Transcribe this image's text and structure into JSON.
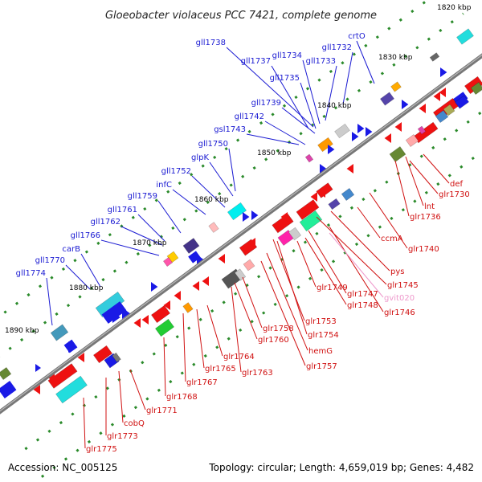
{
  "title": "Gloeobacter violaceus PCC 7421, complete genome",
  "footer": {
    "accession": "Accession: NC_005125",
    "summary": "Topology: circular; Length: 4,659,019 bp; Genes: 4,482"
  },
  "colors": {
    "forward_label": "#1a1ad2",
    "reverse_label": "#d01010",
    "rna_label": "#ee99cc",
    "backbone": "#7a7a7a",
    "tick": "#2a8a2a"
  },
  "kbp_labels": [
    "1820 kbp",
    "1830 kbp",
    "1840 kbp",
    "1850 kbp",
    "1860 kbp",
    "1870 kbp",
    "1880 kbp",
    "1890 kbp"
  ],
  "forward_labels": [
    "gll1738",
    "gll1737",
    "gll1734",
    "gll1733",
    "gll1732",
    "crtO",
    "gll1735",
    "gll1739",
    "gll1742",
    "gsl1743",
    "gll1750",
    "glpK",
    "gll1752",
    "infC",
    "gll1759",
    "gll1761",
    "gll1762",
    "gll1766",
    "carB",
    "gll1770",
    "gll1774"
  ],
  "reverse_labels": [
    "def",
    "glr1730",
    "lnt",
    "glr1736",
    "ccmA",
    "glr1740",
    "pys",
    "glr1745",
    "glr1749",
    "glr1747",
    "glr1748",
    "glr1746",
    "glr1753",
    "glr1754",
    "hemG",
    "glr1757",
    "glr1758",
    "glr1760",
    "glr1763",
    "glr1764",
    "glr1765",
    "glr1767",
    "glr1768",
    "glr1771",
    "cobQ",
    "glr1773",
    "glr1775"
  ],
  "rna_labels": [
    "gvit020"
  ]
}
